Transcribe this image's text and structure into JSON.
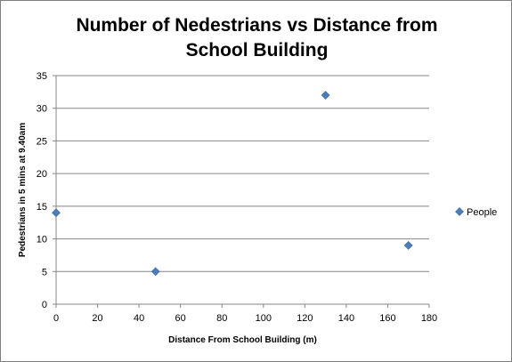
{
  "chart_data": {
    "type": "scatter",
    "title_line1": "Number of Nedestrians vs Distance from",
    "title_line2": "School Building",
    "xlabel": "Distance  From School Building (m)",
    "ylabel": "Pedestrians in 5 mins at 9.40am",
    "xlim": [
      0,
      180
    ],
    "ylim": [
      0,
      35
    ],
    "xticks": [
      0,
      20,
      40,
      60,
      80,
      100,
      120,
      140,
      160,
      180
    ],
    "yticks": [
      0,
      5,
      10,
      15,
      20,
      25,
      30,
      35
    ],
    "grid": "horizontal",
    "legend_position": "right",
    "series": [
      {
        "name": "People",
        "color": "#4a7ebb",
        "marker": "diamond",
        "points": [
          {
            "x": 0,
            "y": 14
          },
          {
            "x": 48,
            "y": 5
          },
          {
            "x": 130,
            "y": 32
          },
          {
            "x": 170,
            "y": 9
          }
        ]
      }
    ]
  }
}
